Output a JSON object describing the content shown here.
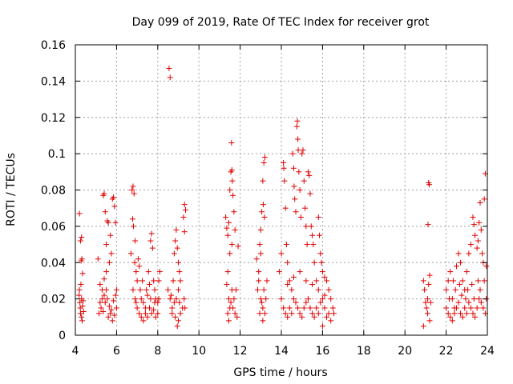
{
  "chart_data": {
    "type": "scatter",
    "title": "Day 099 of 2019, Rate Of TEC Index for receiver grot",
    "xlabel": "GPS time / hours",
    "ylabel": "ROTI / TECUs",
    "xlim": [
      4,
      24
    ],
    "ylim": [
      0,
      0.16
    ],
    "xticks": [
      4,
      6,
      8,
      10,
      12,
      14,
      16,
      18,
      20,
      22,
      24
    ],
    "yticks": [
      0,
      0.02,
      0.04,
      0.06,
      0.08,
      0.1,
      0.12,
      0.14,
      0.16
    ],
    "xtick_labels": [
      "4",
      "6",
      "8",
      "10",
      "12",
      "14",
      "16",
      "18",
      "20",
      "22",
      "24"
    ],
    "ytick_labels": [
      "0",
      "0.02",
      "0.04",
      "0.06",
      "0.08",
      "0.1",
      "0.12",
      "0.14",
      "0.16"
    ],
    "grid": true,
    "marker": "+",
    "color": "#e00000",
    "points": [
      [
        4.2,
        0.067
      ],
      [
        4.25,
        0.052
      ],
      [
        4.3,
        0.054
      ],
      [
        4.28,
        0.041
      ],
      [
        4.32,
        0.042
      ],
      [
        4.35,
        0.034
      ],
      [
        4.2,
        0.025
      ],
      [
        4.3,
        0.02
      ],
      [
        4.22,
        0.018
      ],
      [
        4.35,
        0.016
      ],
      [
        4.25,
        0.012
      ],
      [
        4.3,
        0.01
      ],
      [
        4.4,
        0.013
      ],
      [
        4.18,
        0.022
      ],
      [
        4.27,
        0.028
      ],
      [
        4.33,
        0.008
      ],
      [
        4.24,
        0.015
      ],
      [
        4.38,
        0.019
      ],
      [
        5.1,
        0.042
      ],
      [
        5.2,
        0.028
      ],
      [
        5.3,
        0.02
      ],
      [
        5.35,
        0.077
      ],
      [
        5.4,
        0.078
      ],
      [
        5.45,
        0.068
      ],
      [
        5.5,
        0.05
      ],
      [
        5.55,
        0.063
      ],
      [
        5.6,
        0.062
      ],
      [
        5.7,
        0.055
      ],
      [
        5.8,
        0.075
      ],
      [
        5.85,
        0.076
      ],
      [
        5.9,
        0.071
      ],
      [
        5.95,
        0.062
      ],
      [
        5.75,
        0.045
      ],
      [
        5.65,
        0.04
      ],
      [
        5.5,
        0.035
      ],
      [
        5.4,
        0.031
      ],
      [
        5.3,
        0.025
      ],
      [
        5.2,
        0.018
      ],
      [
        5.15,
        0.012
      ],
      [
        5.25,
        0.015
      ],
      [
        5.35,
        0.013
      ],
      [
        5.45,
        0.018
      ],
      [
        5.55,
        0.02
      ],
      [
        5.65,
        0.016
      ],
      [
        5.75,
        0.014
      ],
      [
        5.85,
        0.019
      ],
      [
        5.95,
        0.022
      ],
      [
        6.0,
        0.025
      ],
      [
        5.6,
        0.01
      ],
      [
        5.7,
        0.012
      ],
      [
        5.8,
        0.008
      ],
      [
        5.9,
        0.011
      ],
      [
        6.0,
        0.015
      ],
      [
        5.5,
        0.025
      ],
      [
        5.4,
        0.022
      ],
      [
        6.75,
        0.08
      ],
      [
        6.8,
        0.082
      ],
      [
        6.85,
        0.078
      ],
      [
        6.78,
        0.064
      ],
      [
        6.82,
        0.06
      ],
      [
        6.9,
        0.052
      ],
      [
        6.7,
        0.045
      ],
      [
        6.88,
        0.04
      ],
      [
        6.95,
        0.035
      ],
      [
        7.0,
        0.03
      ],
      [
        7.05,
        0.042
      ],
      [
        7.1,
        0.038
      ],
      [
        7.15,
        0.025
      ],
      [
        7.2,
        0.02
      ],
      [
        7.3,
        0.018
      ],
      [
        7.4,
        0.015
      ],
      [
        7.5,
        0.022
      ],
      [
        7.6,
        0.028
      ],
      [
        7.55,
        0.035
      ],
      [
        7.65,
        0.052
      ],
      [
        7.7,
        0.056
      ],
      [
        7.75,
        0.048
      ],
      [
        7.8,
        0.03
      ],
      [
        7.85,
        0.025
      ],
      [
        7.9,
        0.02
      ],
      [
        8.0,
        0.018
      ],
      [
        8.05,
        0.03
      ],
      [
        8.1,
        0.035
      ],
      [
        6.9,
        0.02
      ],
      [
        7.0,
        0.015
      ],
      [
        7.1,
        0.012
      ],
      [
        7.2,
        0.01
      ],
      [
        7.3,
        0.008
      ],
      [
        7.4,
        0.012
      ],
      [
        7.5,
        0.01
      ],
      [
        7.6,
        0.015
      ],
      [
        7.7,
        0.012
      ],
      [
        7.8,
        0.014
      ],
      [
        7.9,
        0.01
      ],
      [
        8.0,
        0.012
      ],
      [
        6.8,
        0.025
      ],
      [
        6.95,
        0.018
      ],
      [
        7.25,
        0.03
      ],
      [
        7.45,
        0.025
      ],
      [
        7.65,
        0.02
      ],
      [
        7.85,
        0.018
      ],
      [
        8.05,
        0.02
      ],
      [
        8.55,
        0.147
      ],
      [
        8.6,
        0.142
      ],
      [
        8.5,
        0.025
      ],
      [
        8.6,
        0.02
      ],
      [
        8.7,
        0.015
      ],
      [
        8.75,
        0.03
      ],
      [
        8.8,
        0.045
      ],
      [
        8.85,
        0.052
      ],
      [
        8.9,
        0.058
      ],
      [
        8.95,
        0.048
      ],
      [
        9.0,
        0.04
      ],
      [
        9.05,
        0.035
      ],
      [
        9.1,
        0.03
      ],
      [
        9.0,
        0.025
      ],
      [
        8.9,
        0.02
      ],
      [
        8.8,
        0.018
      ],
      [
        8.7,
        0.012
      ],
      [
        8.85,
        0.01
      ],
      [
        9.0,
        0.008
      ],
      [
        9.1,
        0.012
      ],
      [
        9.2,
        0.015
      ],
      [
        9.3,
        0.072
      ],
      [
        9.35,
        0.069
      ],
      [
        9.25,
        0.065
      ],
      [
        9.3,
        0.057
      ],
      [
        9.28,
        0.02
      ],
      [
        9.32,
        0.015
      ],
      [
        8.95,
        0.005
      ],
      [
        9.05,
        0.018
      ],
      [
        8.65,
        0.022
      ],
      [
        11.3,
        0.065
      ],
      [
        11.35,
        0.059
      ],
      [
        11.4,
        0.055
      ],
      [
        11.45,
        0.062
      ],
      [
        11.5,
        0.08
      ],
      [
        11.55,
        0.09
      ],
      [
        11.6,
        0.091
      ],
      [
        11.58,
        0.106
      ],
      [
        11.62,
        0.085
      ],
      [
        11.65,
        0.077
      ],
      [
        11.7,
        0.068
      ],
      [
        11.75,
        0.058
      ],
      [
        11.6,
        0.05
      ],
      [
        11.5,
        0.045
      ],
      [
        11.4,
        0.035
      ],
      [
        11.35,
        0.028
      ],
      [
        11.45,
        0.02
      ],
      [
        11.55,
        0.018
      ],
      [
        11.65,
        0.015
      ],
      [
        11.75,
        0.012
      ],
      [
        11.85,
        0.01
      ],
      [
        11.9,
        0.049
      ],
      [
        11.8,
        0.025
      ],
      [
        11.7,
        0.02
      ],
      [
        11.6,
        0.025
      ],
      [
        11.5,
        0.015
      ],
      [
        11.4,
        0.012
      ],
      [
        11.45,
        0.008
      ],
      [
        12.8,
        0.042
      ],
      [
        12.9,
        0.035
      ],
      [
        12.95,
        0.05
      ],
      [
        13.0,
        0.058
      ],
      [
        13.05,
        0.068
      ],
      [
        13.1,
        0.085
      ],
      [
        13.15,
        0.095
      ],
      [
        13.2,
        0.098
      ],
      [
        13.12,
        0.072
      ],
      [
        13.18,
        0.065
      ],
      [
        13.0,
        0.045
      ],
      [
        12.9,
        0.03
      ],
      [
        12.85,
        0.025
      ],
      [
        13.0,
        0.02
      ],
      [
        13.1,
        0.015
      ],
      [
        13.2,
        0.012
      ],
      [
        13.15,
        0.025
      ],
      [
        13.05,
        0.018
      ],
      [
        12.95,
        0.012
      ],
      [
        13.25,
        0.02
      ],
      [
        13.3,
        0.03
      ],
      [
        13.1,
        0.008
      ],
      [
        13.9,
        0.035
      ],
      [
        14.0,
        0.045
      ],
      [
        14.1,
        0.095
      ],
      [
        14.12,
        0.092
      ],
      [
        14.15,
        0.085
      ],
      [
        14.2,
        0.07
      ],
      [
        14.25,
        0.05
      ],
      [
        14.3,
        0.04
      ],
      [
        14.4,
        0.03
      ],
      [
        14.5,
        0.025
      ],
      [
        14.55,
        0.1
      ],
      [
        14.6,
        0.092
      ],
      [
        14.62,
        0.082
      ],
      [
        14.65,
        0.075
      ],
      [
        14.7,
        0.068
      ],
      [
        14.75,
        0.115
      ],
      [
        14.78,
        0.118
      ],
      [
        14.8,
        0.108
      ],
      [
        14.82,
        0.102
      ],
      [
        14.85,
        0.09
      ],
      [
        14.9,
        0.08
      ],
      [
        14.95,
        0.065
      ],
      [
        15.0,
        0.1
      ],
      [
        15.05,
        0.102
      ],
      [
        15.1,
        0.085
      ],
      [
        15.15,
        0.07
      ],
      [
        15.2,
        0.06
      ],
      [
        15.25,
        0.05
      ],
      [
        15.3,
        0.09
      ],
      [
        15.35,
        0.088
      ],
      [
        15.4,
        0.078
      ],
      [
        15.45,
        0.06
      ],
      [
        15.5,
        0.055
      ],
      [
        15.55,
        0.05
      ],
      [
        15.6,
        0.04
      ],
      [
        15.7,
        0.03
      ],
      [
        15.8,
        0.065
      ],
      [
        15.85,
        0.055
      ],
      [
        15.9,
        0.045
      ],
      [
        15.95,
        0.04
      ],
      [
        16.0,
        0.035
      ],
      [
        16.1,
        0.032
      ],
      [
        16.2,
        0.03
      ],
      [
        16.3,
        0.025
      ],
      [
        16.4,
        0.02
      ],
      [
        16.5,
        0.015
      ],
      [
        16.55,
        0.012
      ],
      [
        14.0,
        0.02
      ],
      [
        14.1,
        0.015
      ],
      [
        14.2,
        0.012
      ],
      [
        14.3,
        0.01
      ],
      [
        14.4,
        0.015
      ],
      [
        14.5,
        0.012
      ],
      [
        14.6,
        0.02
      ],
      [
        14.7,
        0.018
      ],
      [
        14.8,
        0.015
      ],
      [
        14.9,
        0.012
      ],
      [
        15.0,
        0.01
      ],
      [
        15.1,
        0.015
      ],
      [
        15.2,
        0.018
      ],
      [
        15.3,
        0.02
      ],
      [
        15.4,
        0.015
      ],
      [
        15.5,
        0.012
      ],
      [
        15.6,
        0.01
      ],
      [
        15.7,
        0.015
      ],
      [
        15.8,
        0.012
      ],
      [
        15.9,
        0.018
      ],
      [
        16.0,
        0.02
      ],
      [
        16.1,
        0.015
      ],
      [
        16.2,
        0.01
      ],
      [
        16.3,
        0.012
      ],
      [
        16.4,
        0.008
      ],
      [
        16.0,
        0.005
      ],
      [
        14.3,
        0.028
      ],
      [
        14.6,
        0.032
      ],
      [
        14.9,
        0.035
      ],
      [
        15.2,
        0.03
      ],
      [
        15.5,
        0.028
      ],
      [
        15.8,
        0.025
      ],
      [
        16.1,
        0.022
      ],
      [
        20.9,
        0.03
      ],
      [
        20.95,
        0.025
      ],
      [
        21.0,
        0.018
      ],
      [
        21.05,
        0.015
      ],
      [
        21.1,
        0.02
      ],
      [
        21.15,
        0.084
      ],
      [
        21.18,
        0.083
      ],
      [
        21.12,
        0.061
      ],
      [
        21.2,
        0.033
      ],
      [
        21.15,
        0.028
      ],
      [
        21.1,
        0.012
      ],
      [
        21.2,
        0.008
      ],
      [
        20.9,
        0.005
      ],
      [
        21.25,
        0.018
      ],
      [
        22.0,
        0.025
      ],
      [
        22.1,
        0.03
      ],
      [
        22.2,
        0.035
      ],
      [
        22.3,
        0.02
      ],
      [
        22.4,
        0.015
      ],
      [
        22.5,
        0.038
      ],
      [
        22.6,
        0.045
      ],
      [
        22.7,
        0.04
      ],
      [
        22.8,
        0.03
      ],
      [
        22.9,
        0.025
      ],
      [
        23.0,
        0.035
      ],
      [
        23.1,
        0.045
      ],
      [
        23.2,
        0.05
      ],
      [
        23.3,
        0.065
      ],
      [
        23.35,
        0.061
      ],
      [
        23.4,
        0.055
      ],
      [
        23.5,
        0.048
      ],
      [
        23.55,
        0.052
      ],
      [
        23.6,
        0.062
      ],
      [
        23.65,
        0.073
      ],
      [
        23.7,
        0.058
      ],
      [
        23.75,
        0.045
      ],
      [
        23.8,
        0.04
      ],
      [
        23.85,
        0.075
      ],
      [
        23.9,
        0.089
      ],
      [
        23.95,
        0.038
      ],
      [
        22.0,
        0.015
      ],
      [
        22.1,
        0.012
      ],
      [
        22.2,
        0.01
      ],
      [
        22.3,
        0.008
      ],
      [
        22.4,
        0.012
      ],
      [
        22.5,
        0.015
      ],
      [
        22.6,
        0.018
      ],
      [
        22.7,
        0.012
      ],
      [
        22.8,
        0.01
      ],
      [
        22.9,
        0.015
      ],
      [
        23.0,
        0.012
      ],
      [
        23.1,
        0.018
      ],
      [
        23.2,
        0.015
      ],
      [
        23.3,
        0.012
      ],
      [
        23.4,
        0.01
      ],
      [
        23.5,
        0.015
      ],
      [
        23.6,
        0.02
      ],
      [
        23.7,
        0.018
      ],
      [
        23.8,
        0.015
      ],
      [
        23.9,
        0.012
      ],
      [
        23.95,
        0.02
      ],
      [
        22.15,
        0.02
      ],
      [
        22.45,
        0.025
      ],
      [
        22.75,
        0.022
      ],
      [
        23.05,
        0.025
      ],
      [
        23.35,
        0.02
      ],
      [
        23.65,
        0.025
      ],
      [
        23.85,
        0.03
      ],
      [
        22.35,
        0.03
      ],
      [
        22.65,
        0.028
      ],
      [
        22.95,
        0.02
      ],
      [
        23.25,
        0.028
      ],
      [
        23.55,
        0.03
      ]
    ]
  }
}
